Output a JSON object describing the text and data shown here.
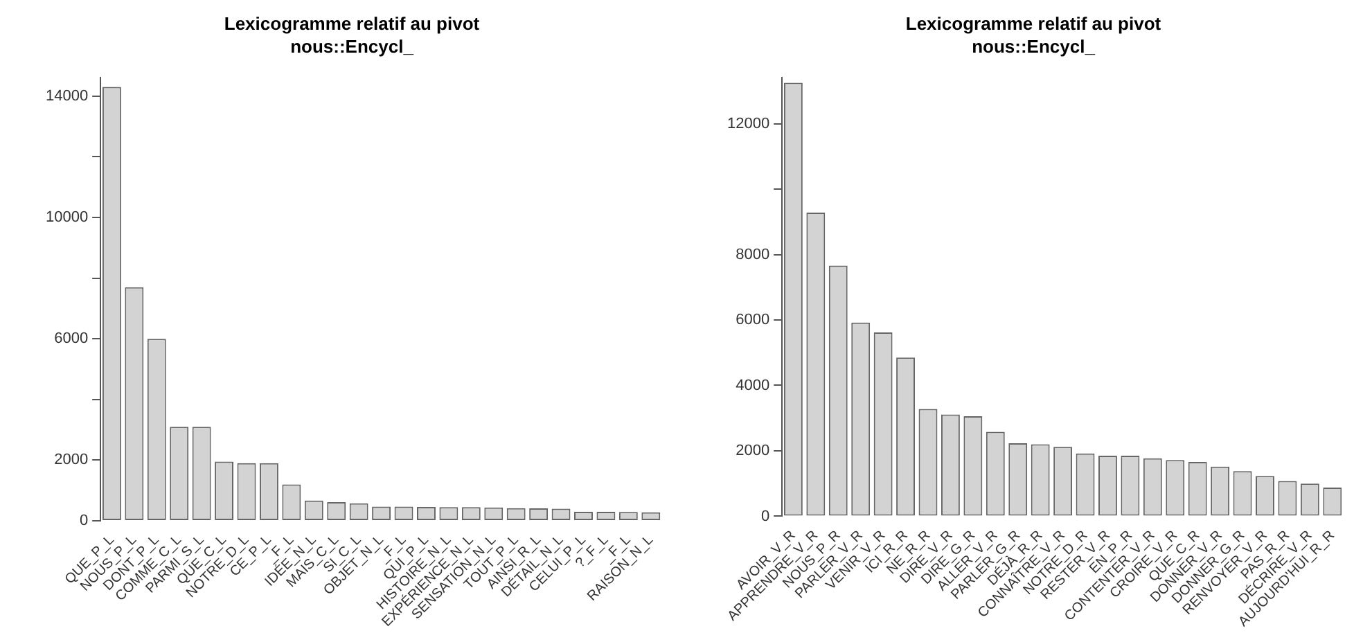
{
  "chart_data": [
    {
      "type": "bar",
      "title": "Lexicogramme relatif au pivot",
      "subtitle": "nous::Encycl_",
      "categories": [
        "QUE_P_L",
        "NOUS_P_L",
        "DONT_P_L",
        "COMME_C_L",
        "PARMI_S_L",
        "QUE_C_L",
        "NOTRE_D_L",
        "CE_P_L",
        "_F_L",
        "IDÉE_N_L",
        "MAIS_C_L",
        "SI_C_L",
        "OBJET_N_L",
        "_F_L",
        "QUI_P_L",
        "HISTOIRE_N_L",
        "EXPÉRIENCE_N_L",
        "SENSATION_N_L",
        "TOUT_P_L",
        "AINSI_R_L",
        "DÉTAIL_N_L",
        "CELUI_P_L",
        "?_F_L",
        "_F_L",
        "RAISON_N_L"
      ],
      "values": [
        14300,
        7700,
        6000,
        3100,
        3100,
        1950,
        1900,
        1900,
        1200,
        670,
        620,
        580,
        470,
        470,
        460,
        450,
        450,
        440,
        420,
        410,
        400,
        300,
        300,
        290,
        280
      ],
      "color": "#d3d3d3",
      "ylim": [
        0,
        14600
      ],
      "yticks": [
        0,
        {
          "value": 2000,
          "label": "2000"
        },
        {
          "value": 4000,
          "label": null
        },
        6000,
        {
          "value": 8000,
          "label": null
        },
        10000,
        {
          "value": 12000,
          "label": null
        },
        14000
      ],
      "grid": false,
      "legend": false
    },
    {
      "type": "bar",
      "title": "Lexicogramme relatif au pivot",
      "subtitle": "nous::Encycl_",
      "categories": [
        "AVOIR_V_R",
        "APPRENDRE_V_R",
        "NOUS_P_R",
        "PARLER_V_R",
        "VENIR_V_R",
        "ICI_R_R",
        "NE_R_R",
        "DIRE_V_R",
        "DIRE_G_R",
        "ALLER_V_R",
        "PARLER_G_R",
        "DÉJÀ_R_R",
        "CONNAÎTRE_V_R",
        "NOTRE_D_R",
        "RESTER_V_R",
        "EN_P_R",
        "CONTENTER_V_R",
        "CROIRE_V_R",
        "QUE_C_R",
        "DONNER_V_R",
        "DONNER_G_R",
        "RENVOYER_V_R",
        "PAS_R_R",
        "DÉCRIRE_V_R",
        "AUJOURD'HUI_R_R"
      ],
      "values": [
        13250,
        9280,
        7660,
        5920,
        5620,
        4850,
        3280,
        3110,
        3060,
        2580,
        2230,
        2200,
        2120,
        1920,
        1850,
        1850,
        1770,
        1720,
        1660,
        1520,
        1380,
        1230,
        1080,
        1000,
        880
      ],
      "color": "#d3d3d3",
      "ylim": [
        0,
        13400
      ],
      "yticks": [
        0,
        2000,
        4000,
        6000,
        8000,
        {
          "value": 10000,
          "label": null
        },
        12000
      ],
      "grid": false,
      "legend": false
    }
  ]
}
